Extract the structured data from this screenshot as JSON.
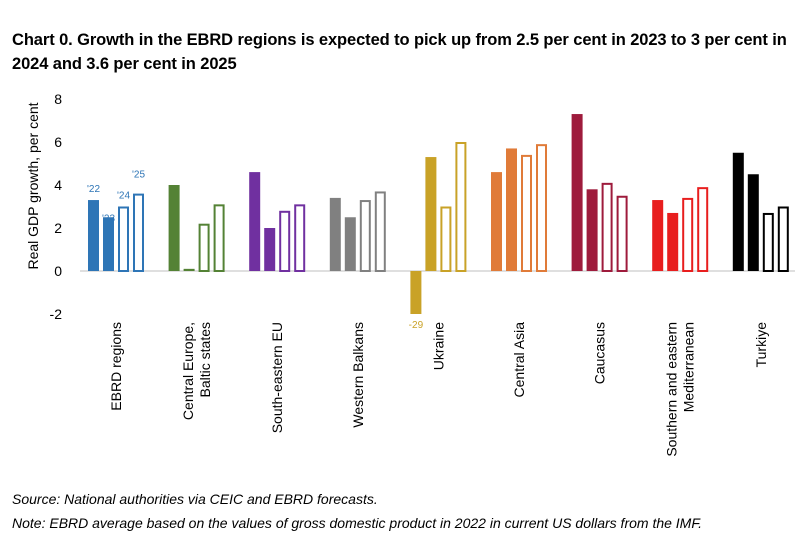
{
  "chart_data": {
    "type": "bar",
    "title": "Chart 0. Growth in the EBRD regions is expected to pick up from 2.5 per cent in 2023 to 3 per cent in 2024 and 3.6 per cent in 2025",
    "ylabel": "Real GDP growth, per cent",
    "xlabel": "",
    "ylim": [
      -2,
      8
    ],
    "yticks": [
      -2,
      0,
      2,
      4,
      6,
      8
    ],
    "grid": false,
    "legend": "none",
    "year_labels": [
      "'22",
      "'23",
      "'24",
      "'25"
    ],
    "year_label_color": "#2E75B6",
    "outlier_label": "-29",
    "outlier_label_color": "#C9A227",
    "categories": [
      {
        "label_lines": [
          "EBRD regions"
        ],
        "color": "#2E75B6",
        "values": [
          3.3,
          2.5,
          3.0,
          3.6
        ]
      },
      {
        "label_lines": [
          "Central Europe,",
          "Baltic states"
        ],
        "color": "#548235",
        "values": [
          4.0,
          0.1,
          2.2,
          3.1
        ]
      },
      {
        "label_lines": [
          "South-eastern EU"
        ],
        "color": "#7030A0",
        "values": [
          4.6,
          2.0,
          2.8,
          3.1
        ]
      },
      {
        "label_lines": [
          "Western Balkans"
        ],
        "color": "#808080",
        "values": [
          3.4,
          2.5,
          3.3,
          3.7
        ]
      },
      {
        "label_lines": [
          "Ukraine"
        ],
        "color": "#C9A227",
        "values": [
          -29.0,
          5.3,
          3.0,
          6.0
        ]
      },
      {
        "label_lines": [
          "Central Asia"
        ],
        "color": "#E07B39",
        "values": [
          4.6,
          5.7,
          5.4,
          5.9
        ]
      },
      {
        "label_lines": [
          "Caucasus"
        ],
        "color": "#9E1B3C",
        "values": [
          7.3,
          3.8,
          4.1,
          3.5
        ]
      },
      {
        "label_lines": [
          "Southern and eastern",
          "Mediterranean"
        ],
        "color": "#E81E1E",
        "values": [
          3.3,
          2.7,
          3.4,
          3.9
        ]
      },
      {
        "label_lines": [
          "Turkiye"
        ],
        "color": "#000000",
        "values": [
          5.5,
          4.5,
          2.7,
          3.0
        ]
      }
    ]
  },
  "footnotes": {
    "source": "Source: National authorities via CEIC and EBRD forecasts.",
    "note": "Note: EBRD average based on the values of gross domestic product in 2022 in current US dollars from the IMF."
  }
}
